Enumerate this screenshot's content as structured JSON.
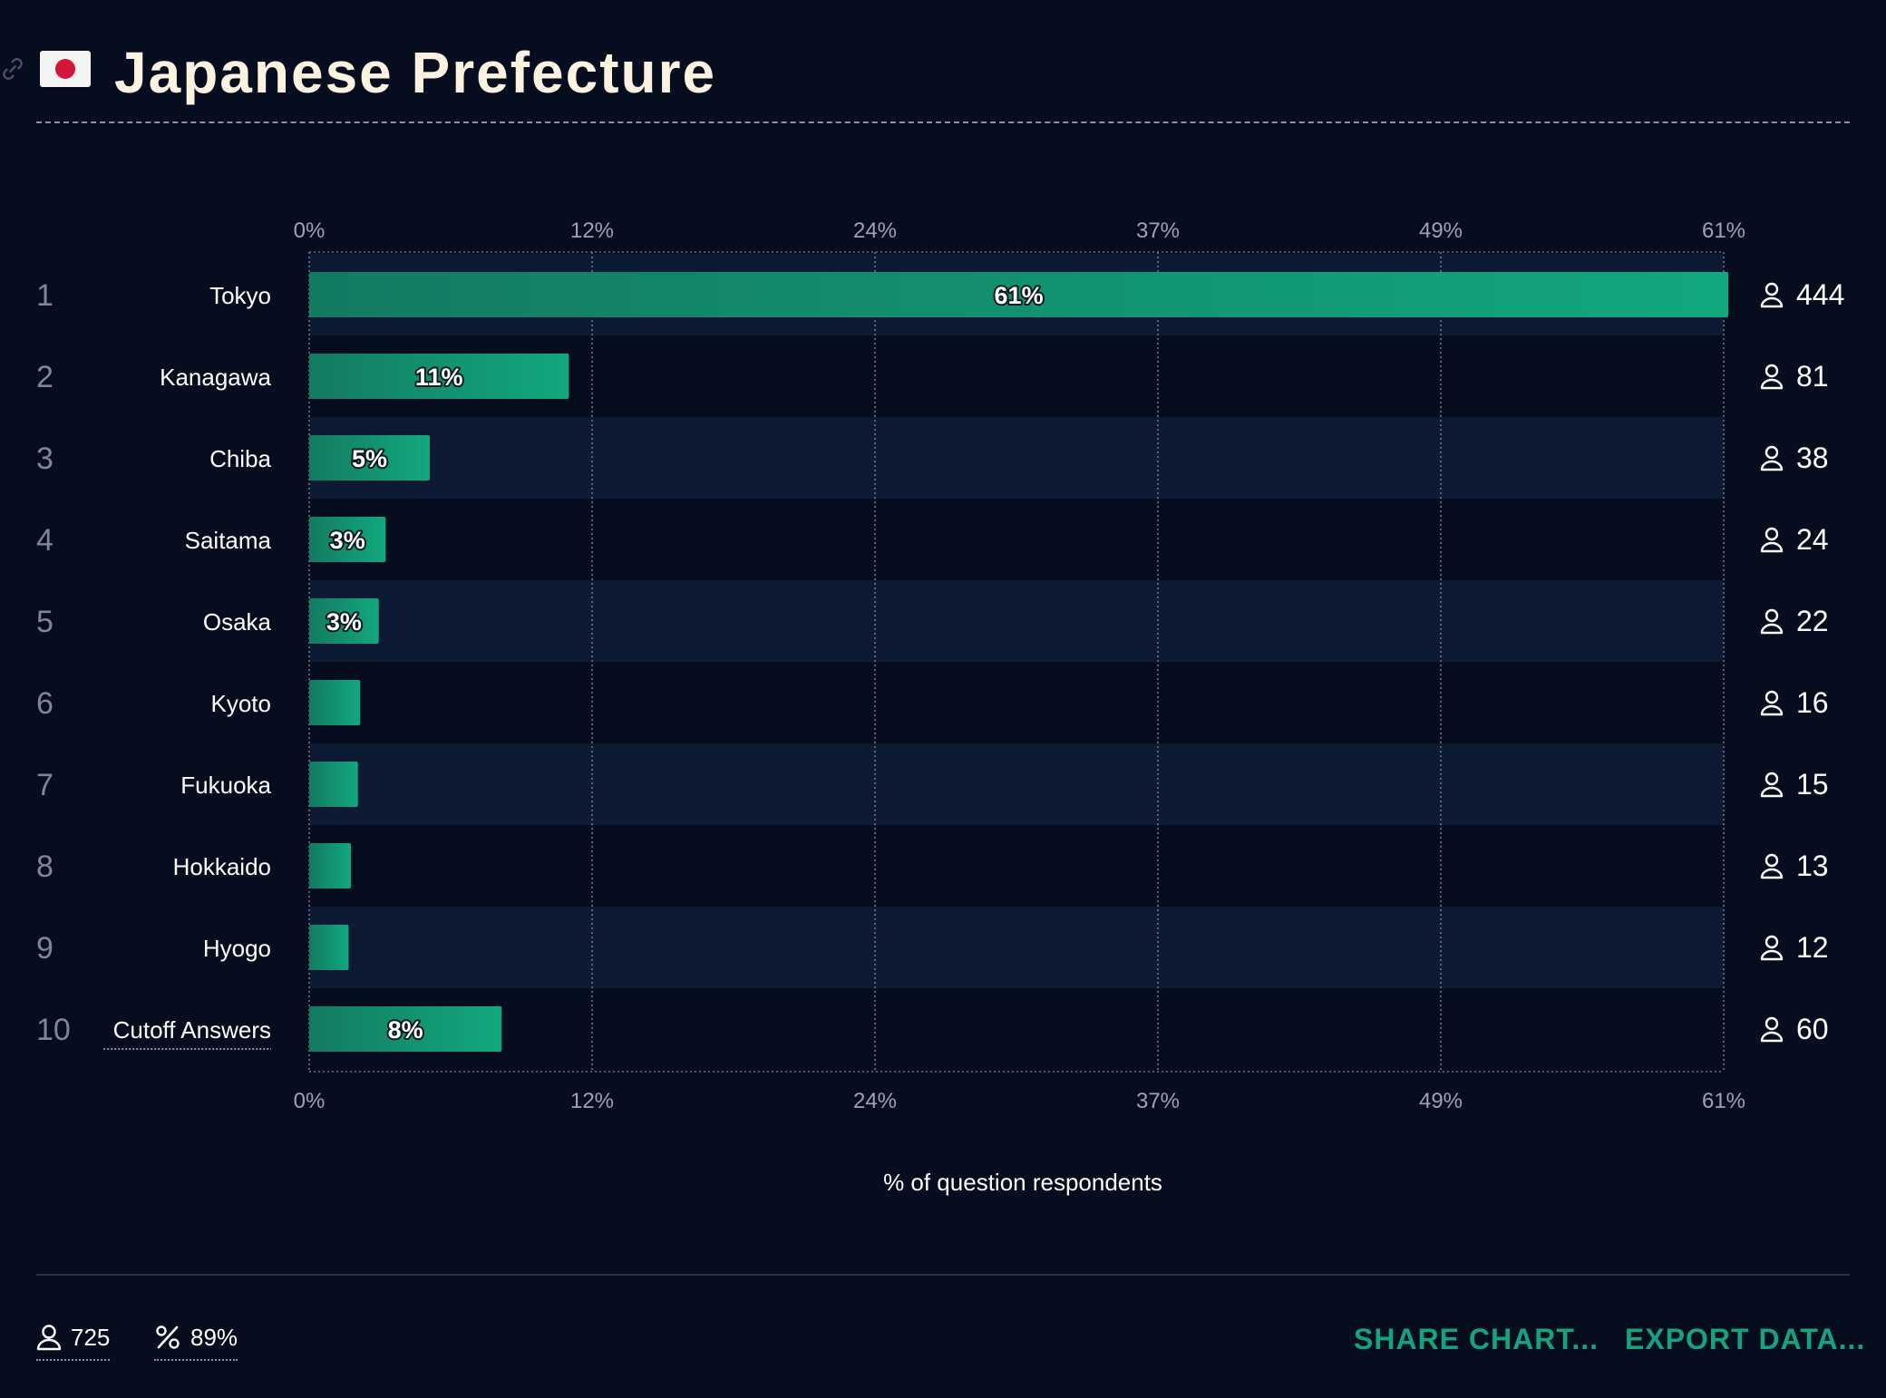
{
  "header": {
    "title": "Japanese Prefecture",
    "flag_icon": "japan-flag-icon",
    "link_icon": "link-icon"
  },
  "colors": {
    "background": "#050d1e",
    "row_band": "#0d1a33",
    "bar_start": "#137a62",
    "bar_end": "#12a87e",
    "accent": "#16a27c",
    "title": "#fbf2e0",
    "tick_text": "#9ca3b4"
  },
  "chart_data": {
    "type": "bar",
    "orientation": "horizontal",
    "title": "Japanese Prefecture",
    "xlabel": "% of question respondents",
    "xlim": [
      0,
      61
    ],
    "ticks": [
      "0%",
      "12%",
      "24%",
      "37%",
      "49%",
      "61%"
    ],
    "tick_values": [
      0,
      12.2,
      24.4,
      36.6,
      48.8,
      61
    ],
    "grid": true,
    "rows": [
      {
        "rank": "1",
        "label": "Tokyo",
        "percent": 61.2,
        "value_label": "61%",
        "count": "444"
      },
      {
        "rank": "2",
        "label": "Kanagawa",
        "percent": 11.2,
        "value_label": "11%",
        "count": "81"
      },
      {
        "rank": "3",
        "label": "Chiba",
        "percent": 5.2,
        "value_label": "5%",
        "count": "38"
      },
      {
        "rank": "4",
        "label": "Saitama",
        "percent": 3.3,
        "value_label": "3%",
        "count": "24"
      },
      {
        "rank": "5",
        "label": "Osaka",
        "percent": 3.0,
        "value_label": "3%",
        "count": "22"
      },
      {
        "rank": "6",
        "label": "Kyoto",
        "percent": 2.2,
        "value_label": "",
        "count": "16"
      },
      {
        "rank": "7",
        "label": "Fukuoka",
        "percent": 2.1,
        "value_label": "",
        "count": "15"
      },
      {
        "rank": "8",
        "label": "Hokkaido",
        "percent": 1.8,
        "value_label": "",
        "count": "13"
      },
      {
        "rank": "9",
        "label": "Hyogo",
        "percent": 1.7,
        "value_label": "",
        "count": "12"
      },
      {
        "rank": "10",
        "label": "Cutoff Answers",
        "percent": 8.3,
        "value_label": "8%",
        "count": "60",
        "underlined": true
      }
    ]
  },
  "footer": {
    "respondents": "725",
    "respondents_icon": "user-icon",
    "percent": "89%",
    "percent_icon": "percent-icon",
    "share_label": "SHARE CHART...",
    "export_label": "EXPORT DATA..."
  }
}
